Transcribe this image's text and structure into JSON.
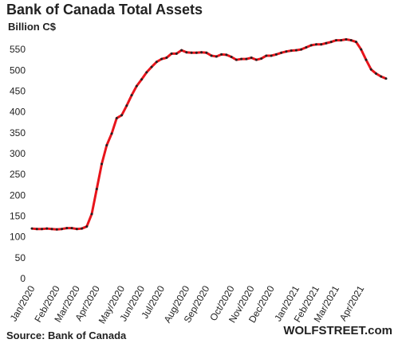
{
  "chart_data": {
    "type": "line",
    "title": "Bank of Canada Total Assets",
    "subtitle": "Billion C$",
    "source": "Source: Bank of Canada",
    "watermark": "WOLFSTREET.com",
    "categories": [
      "Jan/2020",
      null,
      null,
      null,
      null,
      "Feb/2020",
      null,
      null,
      null,
      "Mar/2020",
      null,
      null,
      null,
      "Apr/2020",
      null,
      null,
      null,
      null,
      "May/2020",
      null,
      null,
      null,
      "Jun/2020",
      null,
      null,
      null,
      "Jul/2020",
      null,
      null,
      null,
      null,
      "Aug/2020",
      null,
      null,
      null,
      "Sep/2020",
      null,
      null,
      null,
      null,
      "Oct/2020",
      null,
      null,
      null,
      "Nov/2020",
      null,
      null,
      null,
      "Dec/2020",
      null,
      null,
      null,
      null,
      "Jan/2021",
      null,
      null,
      null,
      "Feb/2021",
      null,
      null,
      null,
      "Mar/2021",
      null,
      null,
      null,
      null,
      "Apr/2021",
      null,
      null,
      null,
      null,
      null
    ],
    "values": [
      120,
      119,
      119,
      120,
      119,
      118,
      119,
      121,
      121,
      119,
      120,
      125,
      155,
      215,
      275,
      320,
      348,
      385,
      392,
      415,
      440,
      462,
      478,
      495,
      508,
      520,
      527,
      530,
      540,
      540,
      548,
      543,
      542,
      542,
      543,
      542,
      535,
      533,
      538,
      537,
      532,
      525,
      527,
      527,
      530,
      525,
      528,
      535,
      535,
      538,
      542,
      545,
      547,
      548,
      550,
      555,
      560,
      562,
      562,
      565,
      568,
      572,
      572,
      574,
      572,
      568,
      550,
      525,
      502,
      492,
      485,
      480
    ],
    "color": "#e8141b",
    "marker_color": "#222222",
    "ylim": [
      0,
      575
    ],
    "yticks": [
      0,
      50,
      100,
      150,
      200,
      250,
      300,
      350,
      400,
      450,
      500,
      550
    ],
    "grid": false
  }
}
